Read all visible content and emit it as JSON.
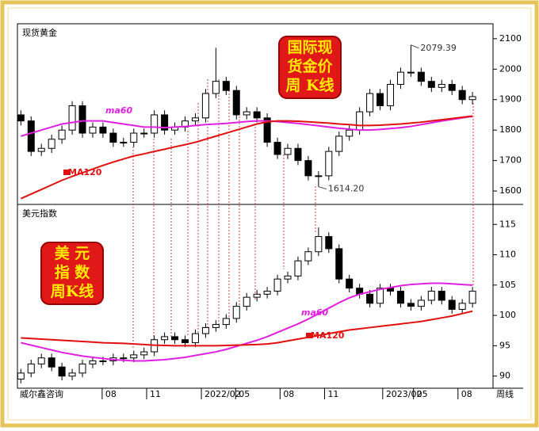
{
  "chart_data": [
    {
      "type": "candlestick",
      "label": "现货黄金",
      "badge": [
        "国际现",
        "货金价",
        "周 K线"
      ],
      "xlim": [
        -1,
        138
      ],
      "ylim": [
        1556,
        2149
      ],
      "yticks": [
        1600,
        1700,
        1800,
        1900,
        2000,
        2100
      ],
      "x": [
        0,
        3,
        6,
        9,
        12,
        15,
        18,
        21,
        24,
        27,
        30,
        33,
        36,
        39,
        42,
        45,
        48,
        51,
        54,
        57,
        60,
        63,
        66,
        69,
        72,
        75,
        78,
        81,
        84,
        87,
        90,
        93,
        96,
        99,
        102,
        105,
        108,
        111,
        114,
        117,
        120,
        123,
        126,
        129,
        132
      ],
      "open": [
        1850,
        1830,
        1730,
        1740,
        1770,
        1800,
        1880,
        1790,
        1810,
        1790,
        1760,
        1760,
        1790,
        1790,
        1850,
        1800,
        1810,
        1830,
        1840,
        1920,
        1960,
        1930,
        1850,
        1860,
        1840,
        1760,
        1720,
        1740,
        1700,
        1650,
        1650,
        1730,
        1780,
        1800,
        1860,
        1920,
        1880,
        1950,
        1990,
        1990,
        1960,
        1940,
        1950,
        1930,
        1900
      ],
      "high": [
        1865,
        1845,
        1755,
        1785,
        1815,
        1895,
        1895,
        1825,
        1825,
        1805,
        1775,
        1805,
        1805,
        1865,
        1865,
        1825,
        1845,
        1855,
        1935,
        2070,
        1975,
        1945,
        1875,
        1875,
        1855,
        1775,
        1755,
        1755,
        1715,
        1665,
        1745,
        1795,
        1815,
        1875,
        1935,
        1935,
        1965,
        2005,
        2079.39,
        2005,
        1975,
        1965,
        1965,
        1945,
        1925
      ],
      "low": [
        1815,
        1715,
        1715,
        1725,
        1755,
        1785,
        1775,
        1775,
        1775,
        1745,
        1745,
        1745,
        1775,
        1775,
        1785,
        1785,
        1795,
        1815,
        1825,
        1905,
        1915,
        1835,
        1835,
        1825,
        1745,
        1705,
        1705,
        1685,
        1635,
        1614.2,
        1635,
        1715,
        1765,
        1785,
        1845,
        1865,
        1865,
        1935,
        1975,
        1945,
        1925,
        1925,
        1915,
        1885,
        1885
      ],
      "close": [
        1830,
        1730,
        1740,
        1770,
        1800,
        1880,
        1790,
        1810,
        1790,
        1760,
        1760,
        1790,
        1790,
        1850,
        1800,
        1810,
        1830,
        1840,
        1920,
        1960,
        1930,
        1850,
        1860,
        1840,
        1760,
        1720,
        1740,
        1700,
        1650,
        1650,
        1730,
        1780,
        1800,
        1860,
        1920,
        1880,
        1950,
        1990,
        1990,
        1960,
        1940,
        1950,
        1930,
        1900,
        1910
      ],
      "series": [
        {
          "name": "ma60",
          "color": "#e020e0",
          "values": [
            1780,
            1790,
            1800,
            1810,
            1820,
            1825,
            1830,
            1830,
            1830,
            1825,
            1820,
            1815,
            1810,
            1810,
            1808,
            1810,
            1812,
            1815,
            1818,
            1820,
            1822,
            1825,
            1828,
            1830,
            1830,
            1828,
            1825,
            1822,
            1818,
            1814,
            1810,
            1806,
            1803,
            1800,
            1800,
            1802,
            1805,
            1808,
            1812,
            1818,
            1824,
            1830,
            1835,
            1840,
            1845
          ]
        },
        {
          "name": "MA120",
          "color": "#e01010",
          "values": [
            1575,
            1590,
            1605,
            1620,
            1635,
            1648,
            1660,
            1672,
            1684,
            1695,
            1705,
            1715,
            1722,
            1730,
            1737,
            1745,
            1752,
            1760,
            1770,
            1780,
            1790,
            1800,
            1810,
            1820,
            1827,
            1830,
            1830,
            1829,
            1827,
            1825,
            1823,
            1820,
            1818,
            1815,
            1815,
            1816,
            1818,
            1820,
            1823,
            1826,
            1830,
            1834,
            1838,
            1842,
            1846
          ]
        }
      ],
      "annotations": [
        {
          "text": "2079.39",
          "x": 114,
          "y": 2079.39
        },
        {
          "text": "1614.20",
          "x": 87,
          "y": 1614.2
        }
      ]
    },
    {
      "type": "candlestick",
      "label": "美元指数",
      "badge": [
        "美 元",
        "指 数",
        "周K线"
      ],
      "source": "威尔鑫咨询",
      "x_label": "周线",
      "xlim": [
        -1,
        138
      ],
      "ylim": [
        88,
        118.3
      ],
      "yticks": [
        90,
        95,
        100,
        105,
        110,
        115
      ],
      "xticks": [
        {
          "value": 27,
          "label": "08"
        },
        {
          "value": 40,
          "label": "11"
        },
        {
          "value": 56,
          "label": "2022/02"
        },
        {
          "value": 66,
          "label": "05"
        },
        {
          "value": 79,
          "label": "08"
        },
        {
          "value": 92,
          "label": "11"
        },
        {
          "value": 109,
          "label": "2023/02"
        },
        {
          "value": 118,
          "label": "05"
        },
        {
          "value": 131,
          "label": "08"
        }
      ],
      "x": [
        0,
        3,
        6,
        9,
        12,
        15,
        18,
        21,
        24,
        27,
        30,
        33,
        36,
        39,
        42,
        45,
        48,
        51,
        54,
        57,
        60,
        63,
        66,
        69,
        72,
        75,
        78,
        81,
        84,
        87,
        90,
        93,
        96,
        99,
        102,
        105,
        108,
        111,
        114,
        117,
        120,
        123,
        126,
        129,
        132
      ],
      "open": [
        89.5,
        90.5,
        92,
        93,
        91.5,
        90,
        90.5,
        92,
        92.5,
        92.5,
        93,
        93,
        93.5,
        94,
        96,
        96.5,
        96,
        95.5,
        97,
        98,
        98.5,
        99.5,
        101.5,
        103,
        103.5,
        104,
        106,
        106.5,
        109,
        110.5,
        113,
        111,
        106,
        104.5,
        103.5,
        102,
        104.5,
        104,
        102,
        101.5,
        102.5,
        104,
        102.5,
        101,
        102
      ],
      "high": [
        91.2,
        92.7,
        93.7,
        93.7,
        92.2,
        91.2,
        92.7,
        93.2,
        93.2,
        93.7,
        93.7,
        94.2,
        94.7,
        96.7,
        97.2,
        97.2,
        96.7,
        97.7,
        98.7,
        99.2,
        100.2,
        102.2,
        103.7,
        104.2,
        104.7,
        106.7,
        107.2,
        109.7,
        111.2,
        114.5,
        113.7,
        111.7,
        106.7,
        105.2,
        104.2,
        105.2,
        105.2,
        104.7,
        102.7,
        103.2,
        104.7,
        104.7,
        103.2,
        102.7,
        104.7
      ],
      "low": [
        88.8,
        89.8,
        91.3,
        90.8,
        89.3,
        89.3,
        89.8,
        91.3,
        91.8,
        91.8,
        92.3,
        92.3,
        92.8,
        93.3,
        95.3,
        95.3,
        94.8,
        94.8,
        96.3,
        97.3,
        97.8,
        98.8,
        100.8,
        102.3,
        102.8,
        103.3,
        105.3,
        105.8,
        108.3,
        109.8,
        110.3,
        105.3,
        103.8,
        102.8,
        101.3,
        101.3,
        103.3,
        101.3,
        100.8,
        100.8,
        101.8,
        101.8,
        100.3,
        100.3,
        101.3
      ],
      "close": [
        90.5,
        92,
        93,
        91.5,
        90,
        90.5,
        92,
        92.5,
        92.5,
        93,
        93,
        93.5,
        94,
        96,
        96.5,
        96,
        95.5,
        97,
        98,
        98.5,
        99.5,
        101.5,
        103,
        103.5,
        104,
        106,
        106.5,
        109,
        110.5,
        113,
        111,
        106,
        104.5,
        103.5,
        102,
        104.5,
        104,
        102,
        101.5,
        102.5,
        104,
        102.5,
        101,
        102,
        104
      ],
      "series": [
        {
          "name": "ma60",
          "color": "#e020e0",
          "values": [
            95.5,
            95.1,
            94.7,
            94.3,
            93.9,
            93.6,
            93.3,
            93.1,
            92.9,
            92.7,
            92.6,
            92.5,
            92.5,
            92.6,
            92.7,
            92.9,
            93.1,
            93.4,
            93.7,
            94.0,
            94.4,
            94.9,
            95.4,
            95.9,
            96.5,
            97.2,
            97.9,
            98.6,
            99.4,
            100.3,
            101.2,
            102.1,
            102.9,
            103.5,
            103.9,
            104.3,
            104.6,
            104.9,
            105.1,
            105.2,
            105.3,
            105.3,
            105.2,
            105.1,
            105.0
          ]
        },
        {
          "name": "MA120",
          "color": "#e01010",
          "values": [
            96.3,
            96.2,
            96.1,
            96.0,
            95.9,
            95.8,
            95.7,
            95.6,
            95.5,
            95.45,
            95.4,
            95.3,
            95.2,
            95.1,
            95.05,
            95.0,
            95.0,
            95.0,
            95.0,
            95.0,
            95.05,
            95.1,
            95.15,
            95.2,
            95.3,
            95.5,
            95.8,
            96.1,
            96.4,
            96.7,
            97.0,
            97.3,
            97.6,
            97.8,
            98.0,
            98.2,
            98.4,
            98.6,
            98.8,
            99.0,
            99.3,
            99.6,
            99.9,
            100.3,
            100.7
          ]
        }
      ]
    }
  ]
}
